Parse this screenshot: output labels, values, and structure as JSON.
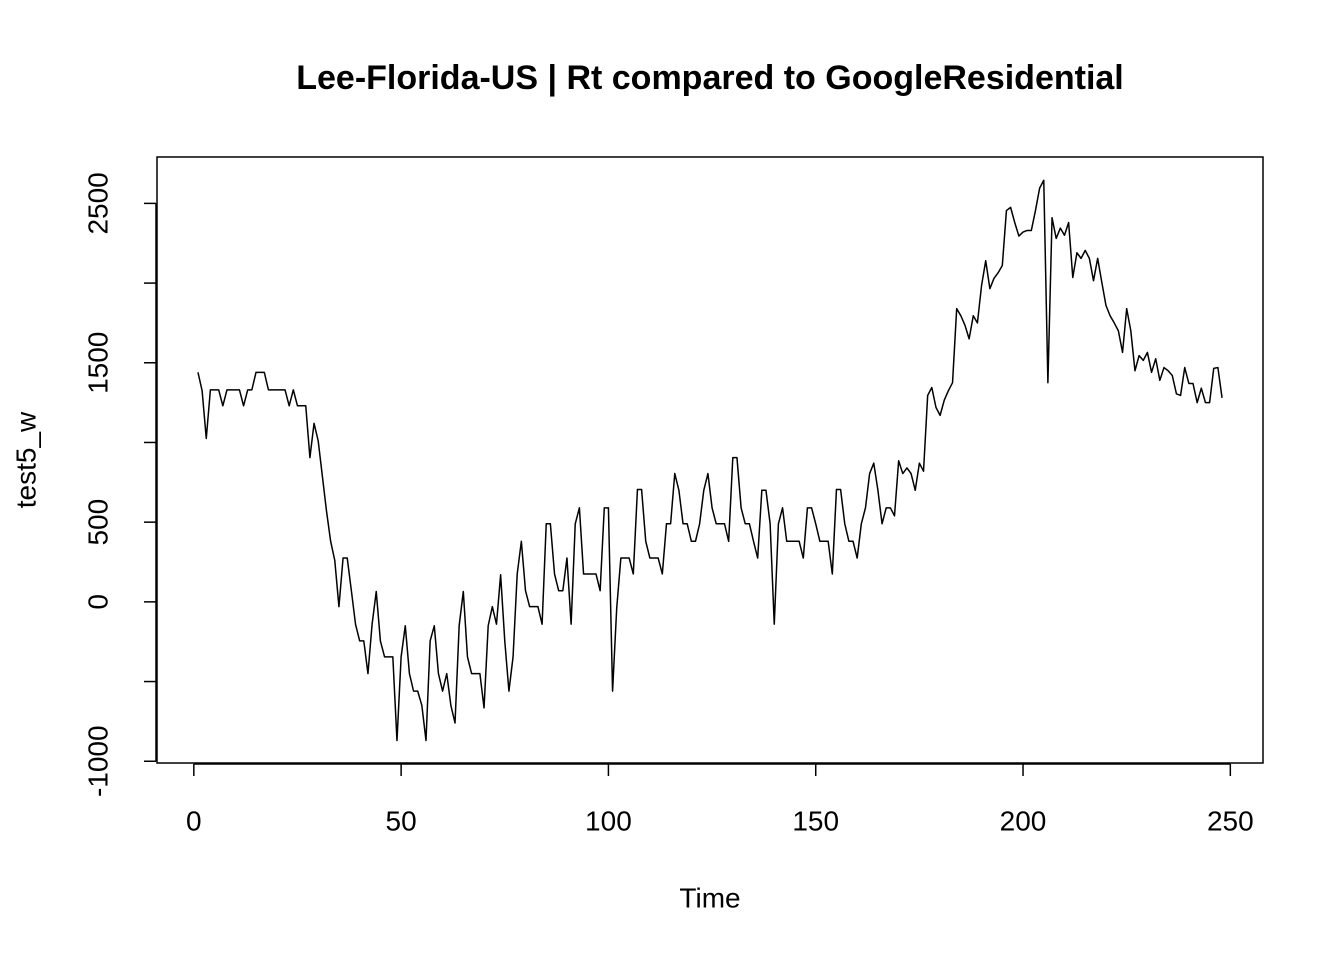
{
  "chart_data": {
    "type": "line",
    "title": "Lee-Florida-US | Rt compared to GoogleResidential",
    "x_label": "Time",
    "y_label": "test5_w",
    "xlim": [
      -8.88,
      257.88
    ],
    "ylim": [
      -1011,
      2791
    ],
    "xticks": [
      0,
      50,
      100,
      150,
      200,
      250
    ],
    "yticks": [
      -1000,
      {
        "value": -500,
        "label": null
      },
      0,
      500,
      {
        "value": 1000,
        "label": null
      },
      1500,
      {
        "value": 2000,
        "label": null
      },
      2500
    ],
    "x": [
      1,
      2,
      3,
      4,
      5,
      6,
      7,
      8,
      9,
      10,
      11,
      12,
      13,
      14,
      15,
      16,
      17,
      18,
      19,
      20,
      21,
      22,
      23,
      24,
      25,
      26,
      27,
      28,
      29,
      30,
      31,
      32,
      33,
      34,
      35,
      36,
      37,
      38,
      39,
      40,
      41,
      42,
      43,
      44,
      45,
      46,
      47,
      48,
      49,
      50,
      51,
      52,
      53,
      54,
      55,
      56,
      57,
      58,
      59,
      60,
      61,
      62,
      63,
      64,
      65,
      66,
      67,
      68,
      69,
      70,
      71,
      72,
      73,
      74,
      75,
      76,
      77,
      78,
      79,
      80,
      81,
      82,
      83,
      84,
      85,
      86,
      87,
      88,
      89,
      90,
      91,
      92,
      93,
      94,
      95,
      96,
      97,
      98,
      99,
      100,
      101,
      102,
      103,
      104,
      105,
      106,
      107,
      108,
      109,
      110,
      111,
      112,
      113,
      114,
      115,
      116,
      117,
      118,
      119,
      120,
      121,
      122,
      123,
      124,
      125,
      126,
      127,
      128,
      129,
      130,
      131,
      132,
      133,
      134,
      135,
      136,
      137,
      138,
      139,
      140,
      141,
      142,
      143,
      144,
      145,
      146,
      147,
      148,
      149,
      150,
      151,
      152,
      153,
      154,
      155,
      156,
      157,
      158,
      159,
      160,
      161,
      162,
      163,
      164,
      165,
      166,
      167,
      168,
      169,
      170,
      171,
      172,
      173,
      174,
      175,
      176,
      177,
      178,
      179,
      180,
      181,
      182,
      183,
      184,
      185,
      186,
      187,
      188,
      189,
      190,
      191,
      192,
      193,
      194,
      195,
      196,
      197,
      198,
      199,
      200,
      201,
      202,
      203,
      204,
      205,
      206,
      207,
      208,
      209,
      210,
      211,
      212,
      213,
      214,
      215,
      216,
      217,
      218,
      219,
      220,
      221,
      222,
      223,
      224,
      225,
      226,
      227,
      228,
      229,
      230,
      231,
      232,
      233,
      234,
      235,
      236,
      237,
      238,
      239,
      240,
      241,
      242,
      243,
      244,
      245,
      246,
      247,
      248
    ],
    "series": [
      {
        "name": "test5_w",
        "color": "#000000",
        "values": [
          1440,
          1325,
          1025,
          1330,
          1330,
          1330,
          1230,
          1330,
          1330,
          1330,
          1330,
          1230,
          1330,
          1330,
          1440,
          1440,
          1440,
          1330,
          1330,
          1330,
          1330,
          1330,
          1230,
          1330,
          1230,
          1230,
          1230,
          905,
          1120,
          1010,
          790,
          570,
          380,
          260,
          -30,
          275,
          275,
          70,
          -140,
          -245,
          -245,
          -450,
          -140,
          65,
          -245,
          -345,
          -345,
          -345,
          -870,
          -345,
          -150,
          -450,
          -560,
          -560,
          -650,
          -870,
          -245,
          -150,
          -450,
          -560,
          -450,
          -650,
          -760,
          -150,
          65,
          -345,
          -450,
          -450,
          -450,
          -665,
          -150,
          -30,
          -140,
          170,
          -245,
          -560,
          -345,
          175,
          380,
          70,
          -30,
          -30,
          -30,
          -140,
          490,
          490,
          175,
          70,
          70,
          275,
          -140,
          490,
          590,
          175,
          175,
          175,
          175,
          70,
          590,
          590,
          -560,
          -40,
          275,
          275,
          275,
          175,
          705,
          705,
          380,
          275,
          275,
          275,
          175,
          490,
          490,
          805,
          700,
          490,
          490,
          380,
          380,
          490,
          700,
          805,
          590,
          490,
          490,
          490,
          380,
          905,
          905,
          590,
          490,
          490,
          380,
          275,
          700,
          700,
          490,
          -140,
          490,
          590,
          380,
          380,
          380,
          380,
          275,
          590,
          590,
          490,
          380,
          380,
          380,
          175,
          705,
          705,
          490,
          380,
          380,
          275,
          490,
          590,
          805,
          870,
          700,
          490,
          590,
          590,
          540,
          885,
          805,
          840,
          805,
          700,
          870,
          820,
          1295,
          1345,
          1220,
          1170,
          1265,
          1325,
          1375,
          1840,
          1795,
          1735,
          1650,
          1795,
          1750,
          1985,
          2140,
          1965,
          2030,
          2065,
          2110,
          2455,
          2475,
          2380,
          2295,
          2320,
          2330,
          2330,
          2455,
          2595,
          2645,
          1375,
          2410,
          2280,
          2345,
          2300,
          2380,
          2035,
          2190,
          2155,
          2205,
          2155,
          2015,
          2155,
          2005,
          1860,
          1795,
          1750,
          1700,
          1565,
          1840,
          1700,
          1450,
          1545,
          1515,
          1565,
          1440,
          1525,
          1390,
          1470,
          1450,
          1420,
          1305,
          1295,
          1470,
          1370,
          1370,
          1250,
          1340,
          1250,
          1250,
          1465,
          1470,
          1280
        ]
      }
    ]
  }
}
